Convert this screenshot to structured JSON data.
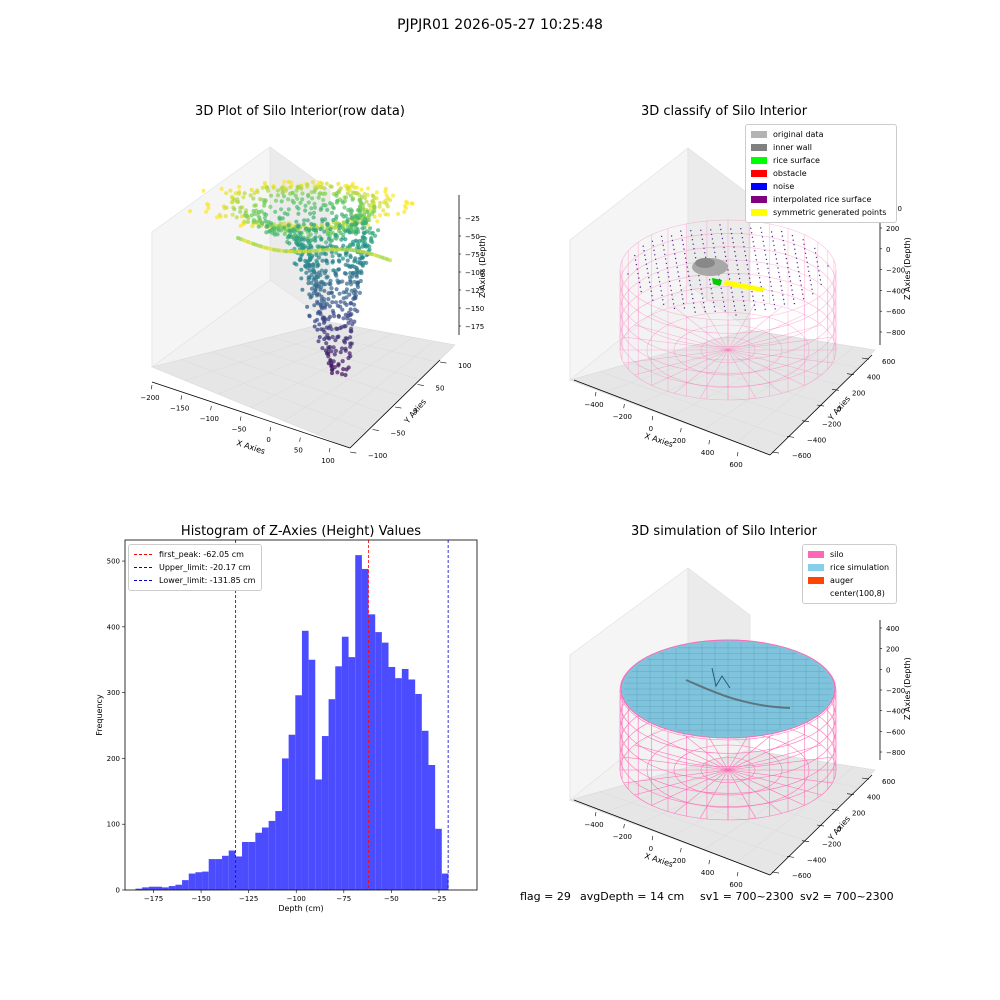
{
  "figure": {
    "suptitle": "PJPJR01 2026-05-27 10:25:48",
    "status": {
      "flag": "flag = 29",
      "avg_depth": "avgDepth = 14 cm",
      "sv1": "sv1 = 700~2300",
      "sv2": "sv2 = 700~2300"
    }
  },
  "colors": {
    "histogram_bar": "#4c4cff",
    "first_peak": "#ff0000",
    "limits": "#0000cc",
    "silo": "#ff69b4",
    "rice": "#87ceeb",
    "auger": "#ff4500",
    "viridis": [
      "#440154",
      "#3b528b",
      "#21918c",
      "#5ec962",
      "#fde725"
    ]
  },
  "chart_data": [
    {
      "type": "scatter",
      "title": "3D Plot of Silo Interior(row data)",
      "xlabel": "X Axies",
      "ylabel": "Y Axies",
      "zlabel": "Z Axies (Depth)",
      "x_ticks": [
        "−200",
        "−150",
        "−100",
        "−50",
        "0",
        "50",
        "100"
      ],
      "y_ticks": [
        "100",
        "50",
        "0",
        "−50",
        "−100"
      ],
      "z_ticks": [
        "−25",
        "−50",
        "−75",
        "−100",
        "−125",
        "−150",
        "−175"
      ],
      "xlim": [
        -200,
        100
      ],
      "ylim": [
        -100,
        100
      ],
      "zlim": [
        -190,
        -10
      ],
      "colormap": "viridis"
    },
    {
      "type": "scatter",
      "title": "3D classify of Silo Interior",
      "xlabel": "X Axies",
      "ylabel": "Y Axies",
      "zlabel": "Z Axies (Depth)",
      "x_ticks": [
        "−400",
        "−200",
        "0",
        "200",
        "400",
        "600"
      ],
      "y_ticks": [
        "600",
        "400",
        "200",
        "0",
        "−200",
        "−400",
        "−600"
      ],
      "z_ticks": [
        "200",
        "0",
        "−200",
        "−400",
        "−600",
        "−800"
      ],
      "partial_tick": "00",
      "legend": [
        {
          "label": "original data",
          "color": "#b3b3b3"
        },
        {
          "label": "inner wall",
          "color": "#808080"
        },
        {
          "label": "rice surface",
          "color": "#00ff00"
        },
        {
          "label": "obstacle",
          "color": "#ff0000"
        },
        {
          "label": "noise",
          "color": "#0000ff"
        },
        {
          "label": "interpolated rice surface",
          "color": "#800080"
        },
        {
          "label": "symmetric generated points",
          "color": "#ffff00"
        }
      ]
    },
    {
      "type": "bar",
      "title": "Histogram of Z-Axies (Height) Values",
      "xlabel": "Depth (cm)",
      "ylabel": "Frequency",
      "xlim": [
        -190,
        -5
      ],
      "ylim": [
        0,
        532
      ],
      "x_ticks": [
        -175,
        -150,
        -125,
        -100,
        -75,
        -50,
        -25
      ],
      "y_ticks": [
        0,
        100,
        200,
        300,
        400,
        500
      ],
      "bin_start": -184.5,
      "bin_width": 3.5,
      "values": [
        2,
        4,
        5,
        5,
        4,
        6,
        8,
        15,
        25,
        27,
        28,
        47,
        47,
        52,
        60,
        51,
        73,
        73,
        87,
        95,
        105,
        120,
        200,
        236,
        296,
        394,
        350,
        168,
        234,
        290,
        340,
        385,
        354,
        509,
        488,
        419,
        392,
        376,
        339,
        322,
        336,
        320,
        298,
        242,
        190,
        93,
        25
      ],
      "lines": [
        {
          "label": "first_peak: -62.05 cm",
          "value": -62.05,
          "color": "#ff0000"
        },
        {
          "label": "Upper_limit: -20.17 cm",
          "value": -20.17,
          "color": "#0000cc"
        },
        {
          "label": "Lower_limit: -131.85 cm",
          "value": -131.85,
          "color": "#0000cc"
        }
      ]
    },
    {
      "type": "scatter",
      "title": "3D simulation of Silo Interior",
      "xlabel": "X Axies",
      "ylabel": "Y Axies",
      "zlabel": "Z Axies (Depth)",
      "x_ticks": [
        "−400",
        "−200",
        "0",
        "200",
        "400",
        "600"
      ],
      "y_ticks": [
        "600",
        "400",
        "200",
        "0",
        "−200",
        "−400",
        "−600"
      ],
      "z_ticks": [
        "400",
        "200",
        "0",
        "−200",
        "−400",
        "−600",
        "−800"
      ],
      "legend": [
        {
          "label": "silo",
          "color": "#ff69b4"
        },
        {
          "label": "rice simulation",
          "color": "#87ceeb"
        },
        {
          "label": "auger",
          "color": "#ff4500"
        },
        {
          "label": "center(100,8)",
          "color": ""
        }
      ]
    }
  ]
}
